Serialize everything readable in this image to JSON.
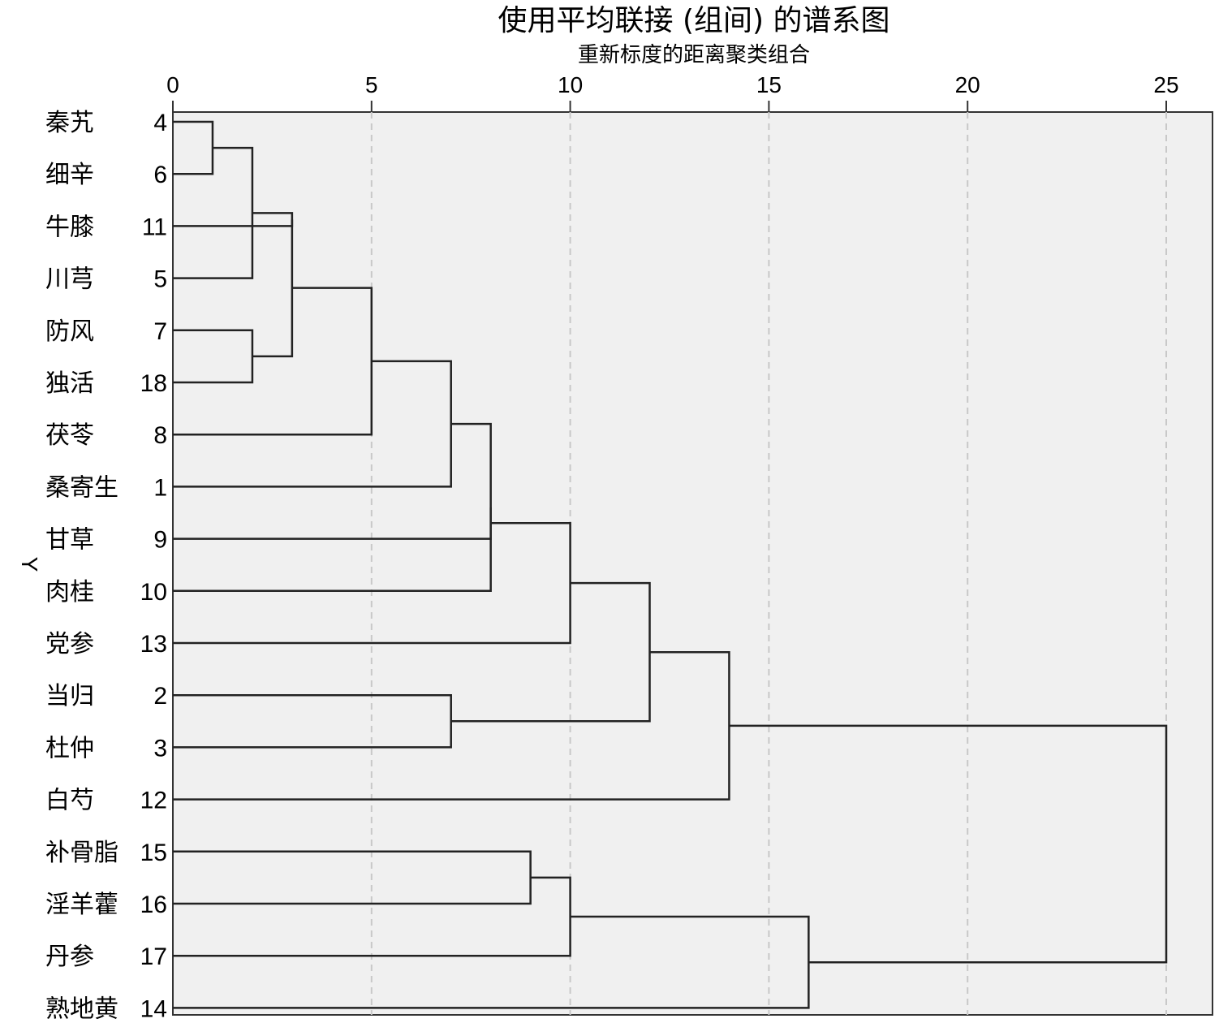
{
  "chart_data": {
    "type": "dendrogram",
    "title": "使用平均联接 (组间) 的谱系图",
    "subtitle": "重新标度的距离聚类组合",
    "ylabel": "Y",
    "xlim": [
      0,
      25
    ],
    "xticks": [
      0,
      5,
      10,
      15,
      20,
      25
    ],
    "grid": true,
    "leaves": [
      {
        "name": "秦艽",
        "id": "4"
      },
      {
        "name": "细辛",
        "id": "6"
      },
      {
        "name": "牛膝",
        "id": "11"
      },
      {
        "name": "川芎",
        "id": "5"
      },
      {
        "name": "防风",
        "id": "7"
      },
      {
        "name": "独活",
        "id": "18"
      },
      {
        "name": "茯苓",
        "id": "8"
      },
      {
        "name": "桑寄生",
        "id": "1"
      },
      {
        "name": "甘草",
        "id": "9"
      },
      {
        "name": "肉桂",
        "id": "10"
      },
      {
        "name": "党参",
        "id": "13"
      },
      {
        "name": "当归",
        "id": "2"
      },
      {
        "name": "杜仲",
        "id": "3"
      },
      {
        "name": "白芍",
        "id": "12"
      },
      {
        "name": "补骨脂",
        "id": "15"
      },
      {
        "name": "淫羊藿",
        "id": "16"
      },
      {
        "name": "丹参",
        "id": "17"
      },
      {
        "name": "熟地黄",
        "id": "14"
      }
    ],
    "merges": [
      {
        "left": "L0",
        "right": "L1",
        "height": 1
      },
      {
        "left": "M0",
        "right": "L3",
        "height": 2
      },
      {
        "left": "L4",
        "right": "L5",
        "height": 2
      },
      {
        "left": "L2",
        "right": "M1",
        "height": 3
      },
      {
        "left": "M3",
        "right": "M2",
        "height": 3
      },
      {
        "left": "M4",
        "right": "L6",
        "height": 5
      },
      {
        "left": "M5",
        "right": "L7",
        "height": 7
      },
      {
        "left": "M6",
        "right": "L9",
        "height": 8
      },
      {
        "left": "L8",
        "right": "M7",
        "height": 8
      },
      {
        "left": "M8",
        "right": "L10",
        "height": 10
      },
      {
        "left": "L11",
        "right": "L12",
        "height": 7
      },
      {
        "left": "M9",
        "right": "M10",
        "height": 12
      },
      {
        "left": "M11",
        "right": "L13",
        "height": 14
      },
      {
        "left": "L14",
        "right": "L15",
        "height": 9
      },
      {
        "left": "M13",
        "right": "L16",
        "height": 10
      },
      {
        "left": "M14",
        "right": "L17",
        "height": 16
      },
      {
        "left": "M12",
        "right": "M15",
        "height": 25
      }
    ]
  }
}
